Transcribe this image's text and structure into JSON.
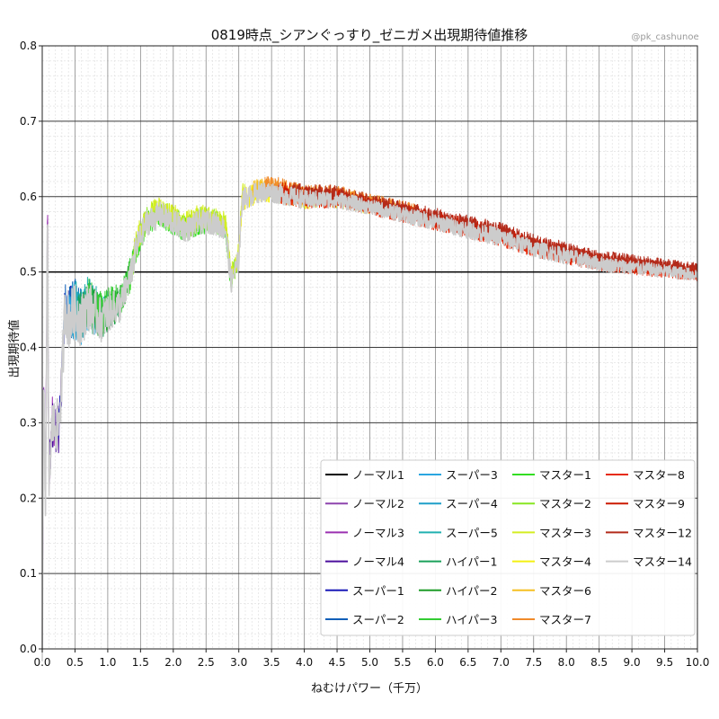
{
  "chart_data": {
    "type": "line",
    "title": "0819時点_シアンぐっすり_ゼニガメ出現期待値推移",
    "credit": "@pk_cashunoe",
    "xlabel": "ねむけパワー（千万）",
    "ylabel": "出現期待値",
    "xlim": [
      0,
      10.0
    ],
    "ylim": [
      0,
      0.8
    ],
    "x_ticks": [
      "0.0",
      "0.5",
      "1.0",
      "1.5",
      "2.0",
      "2.5",
      "3.0",
      "3.5",
      "4.0",
      "4.5",
      "5.0",
      "5.5",
      "6.0",
      "6.5",
      "7.0",
      "7.5",
      "8.0",
      "8.5",
      "9.0",
      "9.5",
      "10.0"
    ],
    "y_ticks": [
      "0.0",
      "0.1",
      "0.2",
      "0.3",
      "0.4",
      "0.5",
      "0.6",
      "0.7",
      "0.8"
    ],
    "reference_line": 0.5,
    "grid": true,
    "legend_position": "lower-right",
    "series": [
      {
        "name": "ノーマル1",
        "color": "#000000",
        "range": [
          0,
          0
        ]
      },
      {
        "name": "ノーマル2",
        "color": "#8e44ad",
        "range": [
          0,
          0.1
        ]
      },
      {
        "name": "ノーマル3",
        "color": "#9b30b0",
        "range": [
          0,
          0.2
        ]
      },
      {
        "name": "ノーマル4",
        "color": "#4b0f9c",
        "range": [
          0,
          0.3
        ]
      },
      {
        "name": "スーパー1",
        "color": "#1a1ab8",
        "range": [
          0.25,
          0.45
        ]
      },
      {
        "name": "スーパー2",
        "color": "#0f5fb8",
        "range": [
          0.3,
          0.6
        ]
      },
      {
        "name": "スーパー3",
        "color": "#2aa6e0",
        "range": [
          0.4,
          0.8
        ]
      },
      {
        "name": "スーパー4",
        "color": "#1f9fc9",
        "range": [
          0.45,
          0.9
        ]
      },
      {
        "name": "スーパー5",
        "color": "#20b0b0",
        "range": [
          0.5,
          1.0
        ]
      },
      {
        "name": "ハイパー1",
        "color": "#1aa05a",
        "range": [
          0.55,
          1.2
        ]
      },
      {
        "name": "ハイパー2",
        "color": "#1e9c28",
        "range": [
          0.6,
          1.35
        ]
      },
      {
        "name": "ハイパー3",
        "color": "#33cc33",
        "range": [
          0.7,
          1.4
        ]
      },
      {
        "name": "マスター1",
        "color": "#33dd22",
        "range": [
          1.3,
          2.9
        ]
      },
      {
        "name": "マスター2",
        "color": "#88e622",
        "range": [
          1.35,
          3.0
        ]
      },
      {
        "name": "マスター3",
        "color": "#d4ee22",
        "range": [
          1.4,
          3.1
        ]
      },
      {
        "name": "マスター4",
        "color": "#f4f011",
        "range": [
          3.0,
          5.0
        ]
      },
      {
        "name": "マスター6",
        "color": "#f5c022",
        "range": [
          3.2,
          5.4
        ]
      },
      {
        "name": "マスター7",
        "color": "#f08a2a",
        "range": [
          3.4,
          5.7
        ]
      },
      {
        "name": "マスター8",
        "color": "#e62a0a",
        "range": [
          3.6,
          10.0
        ]
      },
      {
        "name": "マスター9",
        "color": "#cc1a00",
        "range": [
          3.6,
          10.0
        ]
      },
      {
        "name": "マスター12",
        "color": "#b32a1a",
        "range": [
          3.8,
          10.0
        ]
      },
      {
        "name": "マスター14",
        "color": "#cccccc",
        "range": [
          0,
          10.0
        ]
      }
    ],
    "trend": [
      [
        0.0,
        0.0
      ],
      [
        0.02,
        0.35
      ],
      [
        0.05,
        0.2
      ],
      [
        0.08,
        0.58
      ],
      [
        0.1,
        0.22
      ],
      [
        0.15,
        0.3
      ],
      [
        0.25,
        0.3
      ],
      [
        0.3,
        0.36
      ],
      [
        0.35,
        0.46
      ],
      [
        0.4,
        0.44
      ],
      [
        0.5,
        0.45
      ],
      [
        0.6,
        0.44
      ],
      [
        0.7,
        0.46
      ],
      [
        0.8,
        0.45
      ],
      [
        0.9,
        0.44
      ],
      [
        1.0,
        0.45
      ],
      [
        1.2,
        0.46
      ],
      [
        1.35,
        0.5
      ],
      [
        1.45,
        0.54
      ],
      [
        1.6,
        0.57
      ],
      [
        1.8,
        0.58
      ],
      [
        2.0,
        0.57
      ],
      [
        2.2,
        0.56
      ],
      [
        2.4,
        0.57
      ],
      [
        2.6,
        0.57
      ],
      [
        2.8,
        0.56
      ],
      [
        2.88,
        0.49
      ],
      [
        3.0,
        0.52
      ],
      [
        3.05,
        0.6
      ],
      [
        3.3,
        0.61
      ],
      [
        3.5,
        0.61
      ],
      [
        4.0,
        0.6
      ],
      [
        4.5,
        0.6
      ],
      [
        5.0,
        0.59
      ],
      [
        5.5,
        0.58
      ],
      [
        6.0,
        0.57
      ],
      [
        6.5,
        0.56
      ],
      [
        7.0,
        0.55
      ],
      [
        7.5,
        0.535
      ],
      [
        8.0,
        0.525
      ],
      [
        8.5,
        0.515
      ],
      [
        9.0,
        0.51
      ],
      [
        9.5,
        0.505
      ],
      [
        10.0,
        0.5
      ]
    ],
    "noise": [
      [
        0.0,
        0.03
      ],
      [
        0.4,
        0.04
      ],
      [
        1.3,
        0.02
      ],
      [
        1.5,
        0.018
      ],
      [
        3.0,
        0.015
      ],
      [
        5.0,
        0.01
      ],
      [
        7.0,
        0.012
      ],
      [
        10.0,
        0.008
      ]
    ]
  }
}
